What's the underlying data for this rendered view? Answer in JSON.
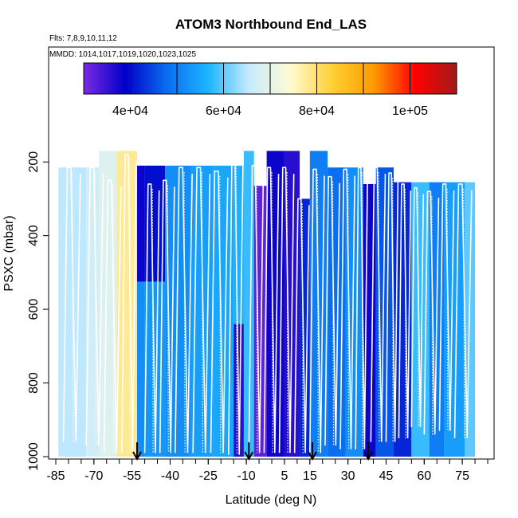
{
  "chart_data": {
    "type": "heatmap",
    "title": "ATOM3 Northbound End_LAS",
    "subtitle_flights": "Flts: 7,8,9,10,11,12",
    "subtitle_dates": "MMDD: 1014,1017,1019,1020,1023,1025",
    "xlabel": "Latitude (deg N)",
    "ylabel": "PSXC (mbar)",
    "xlim": [
      -85,
      85
    ],
    "ylim": [
      1000,
      100
    ],
    "x_ticks": [
      -85,
      -70,
      -55,
      -40,
      -25,
      -10,
      5,
      15,
      30,
      45,
      60,
      75
    ],
    "y_ticks": [
      200,
      400,
      600,
      800,
      1000
    ],
    "colorbar": {
      "range": [
        30000,
        110000
      ],
      "ticks": [
        40000,
        60000,
        80000,
        100000
      ],
      "tick_labels": [
        "4e+04",
        "6e+04",
        "8e+04",
        "1e+05"
      ],
      "stops": [
        "#7b2be3",
        "#0000c8",
        "#0a6cf0",
        "#1cb4ff",
        "#c8ebff",
        "#fffbd2",
        "#ffd034",
        "#ff9a00",
        "#ff0000",
        "#a21a1a"
      ]
    },
    "arrow_latitudes": [
      -53,
      -9,
      16,
      38
    ],
    "columns": [
      {
        "x0": -84,
        "x1": -73,
        "p0": 215,
        "p1": 1000,
        "v": 65000
      },
      {
        "x0": -73,
        "x1": -66,
        "p0": 215,
        "p1": 1000,
        "v": 67000
      },
      {
        "x0": -68,
        "x1": -61,
        "p0": 170,
        "p1": 1000,
        "v": 69000
      },
      {
        "x0": -61,
        "x1": -53,
        "p0": 170,
        "p1": 1000,
        "v": 78000
      },
      {
        "x0": -53,
        "x1": -50,
        "p0": 210,
        "p1": 525,
        "v": 38000
      },
      {
        "x0": -53,
        "x1": -50,
        "p0": 525,
        "p1": 1000,
        "v": 52000
      },
      {
        "x0": -50,
        "x1": -42,
        "p0": 210,
        "p1": 525,
        "v": 40000
      },
      {
        "x0": -50,
        "x1": -42,
        "p0": 525,
        "p1": 1000,
        "v": 53000
      },
      {
        "x0": -42,
        "x1": -32,
        "p0": 210,
        "p1": 1000,
        "v": 52000
      },
      {
        "x0": -32,
        "x1": -23,
        "p0": 210,
        "p1": 1000,
        "v": 54000
      },
      {
        "x0": -23,
        "x1": -15,
        "p0": 210,
        "p1": 1000,
        "v": 55000
      },
      {
        "x0": -15,
        "x1": -11,
        "p0": 210,
        "p1": 640,
        "v": 56000
      },
      {
        "x0": -15,
        "x1": -11,
        "p0": 640,
        "p1": 1000,
        "v": 36000
      },
      {
        "x0": -11,
        "x1": -7,
        "p0": 170,
        "p1": 1000,
        "v": 58000
      },
      {
        "x0": -7,
        "x1": -2,
        "p0": 265,
        "p1": 1000,
        "v": 32000
      },
      {
        "x0": -2,
        "x1": 5,
        "p0": 170,
        "p1": 1000,
        "v": 38000
      },
      {
        "x0": 5,
        "x1": 11,
        "p0": 170,
        "p1": 1000,
        "v": 36000
      },
      {
        "x0": 11,
        "x1": 15,
        "p0": 300,
        "p1": 1000,
        "v": 42000
      },
      {
        "x0": 15,
        "x1": 22,
        "p0": 170,
        "p1": 1000,
        "v": 50000
      },
      {
        "x0": 22,
        "x1": 29,
        "p0": 215,
        "p1": 1000,
        "v": 48000
      },
      {
        "x0": 29,
        "x1": 36,
        "p0": 215,
        "p1": 1000,
        "v": 52000
      },
      {
        "x0": 36,
        "x1": 41,
        "p0": 260,
        "p1": 1000,
        "v": 38000
      },
      {
        "x0": 41,
        "x1": 48,
        "p0": 215,
        "p1": 1000,
        "v": 46000
      },
      {
        "x0": 48,
        "x1": 55,
        "p0": 255,
        "p1": 1000,
        "v": 42000
      },
      {
        "x0": 55,
        "x1": 62,
        "p0": 255,
        "p1": 1000,
        "v": 58000
      },
      {
        "x0": 62,
        "x1": 68,
        "p0": 255,
        "p1": 1000,
        "v": 50000
      },
      {
        "x0": 68,
        "x1": 76,
        "p0": 255,
        "p1": 1000,
        "v": 54000
      },
      {
        "x0": 76,
        "x1": 80,
        "p0": 255,
        "p1": 1000,
        "v": 60000
      }
    ],
    "profiles": [
      {
        "x0": -82,
        "x1": -75,
        "p_top": 215,
        "p_bot": 960
      },
      {
        "x0": -73,
        "x1": -66,
        "p_top": 215,
        "p_bot": 970
      },
      {
        "x0": -66,
        "x1": -59,
        "p_top": 250,
        "p_bot": 990
      },
      {
        "x0": -59,
        "x1": -53,
        "p_top": 180,
        "p_bot": 990
      },
      {
        "x0": -50,
        "x1": -44,
        "p_top": 260,
        "p_bot": 990
      },
      {
        "x0": -44,
        "x1": -38,
        "p_top": 250,
        "p_bot": 990
      },
      {
        "x0": -38,
        "x1": -31,
        "p_top": 215,
        "p_bot": 990
      },
      {
        "x0": -31,
        "x1": -24,
        "p_top": 215,
        "p_bot": 990
      },
      {
        "x0": -24,
        "x1": -17,
        "p_top": 225,
        "p_bot": 990
      },
      {
        "x0": -17,
        "x1": -11,
        "p_top": 180,
        "p_bot": 995
      },
      {
        "x0": -9,
        "x1": -3,
        "p_top": 210,
        "p_bot": 990
      },
      {
        "x0": -3,
        "x1": 3,
        "p_top": 215,
        "p_bot": 990
      },
      {
        "x0": 3,
        "x1": 9,
        "p_top": 215,
        "p_bot": 990
      },
      {
        "x0": 9,
        "x1": 15,
        "p_top": 300,
        "p_bot": 990
      },
      {
        "x0": 15,
        "x1": 21,
        "p_top": 220,
        "p_bot": 990
      },
      {
        "x0": 21,
        "x1": 27,
        "p_top": 240,
        "p_bot": 970
      },
      {
        "x0": 27,
        "x1": 33,
        "p_top": 220,
        "p_bot": 980
      },
      {
        "x0": 33,
        "x1": 38,
        "p_top": 215,
        "p_bot": 980
      },
      {
        "x0": 39,
        "x1": 45,
        "p_top": 215,
        "p_bot": 960
      },
      {
        "x0": 45,
        "x1": 50,
        "p_top": 230,
        "p_bot": 960
      },
      {
        "x0": 50,
        "x1": 55,
        "p_top": 260,
        "p_bot": 950
      },
      {
        "x0": 55,
        "x1": 60,
        "p_top": 270,
        "p_bot": 920
      },
      {
        "x0": 60,
        "x1": 66,
        "p_top": 280,
        "p_bot": 940
      },
      {
        "x0": 66,
        "x1": 72,
        "p_top": 260,
        "p_bot": 930
      },
      {
        "x0": 72,
        "x1": 79,
        "p_top": 260,
        "p_bot": 950
      }
    ]
  }
}
